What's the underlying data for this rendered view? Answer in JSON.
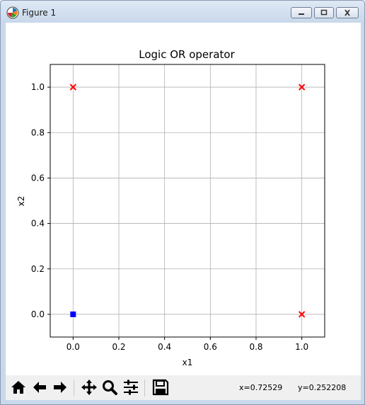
{
  "window": {
    "title": "Figure 1"
  },
  "figure": {
    "coord_x": "x=0.72529",
    "coord_y": "y=0.252208"
  },
  "toolbar": {
    "buttons": [
      "home-icon",
      "back-icon",
      "forward-icon",
      "pan-icon",
      "zoom-icon",
      "subplots-icon",
      "save-icon"
    ]
  },
  "chart_data": {
    "type": "scatter",
    "title": "Logic OR operator",
    "xlabel": "x1",
    "ylabel": "x2",
    "xlim": [
      -0.1,
      1.1
    ],
    "ylim": [
      -0.1,
      1.1
    ],
    "xticks": [
      "0.0",
      "0.2",
      "0.4",
      "0.6",
      "0.8",
      "1.0"
    ],
    "yticks": [
      "0.0",
      "0.2",
      "0.4",
      "0.6",
      "0.8",
      "1.0"
    ],
    "grid": true,
    "series": [
      {
        "marker": "square",
        "color": "#0000ff",
        "points": [
          [
            0,
            0
          ]
        ]
      },
      {
        "marker": "x",
        "color": "#ff0000",
        "points": [
          [
            0,
            1
          ],
          [
            1,
            1
          ],
          [
            1,
            0
          ]
        ]
      }
    ]
  }
}
